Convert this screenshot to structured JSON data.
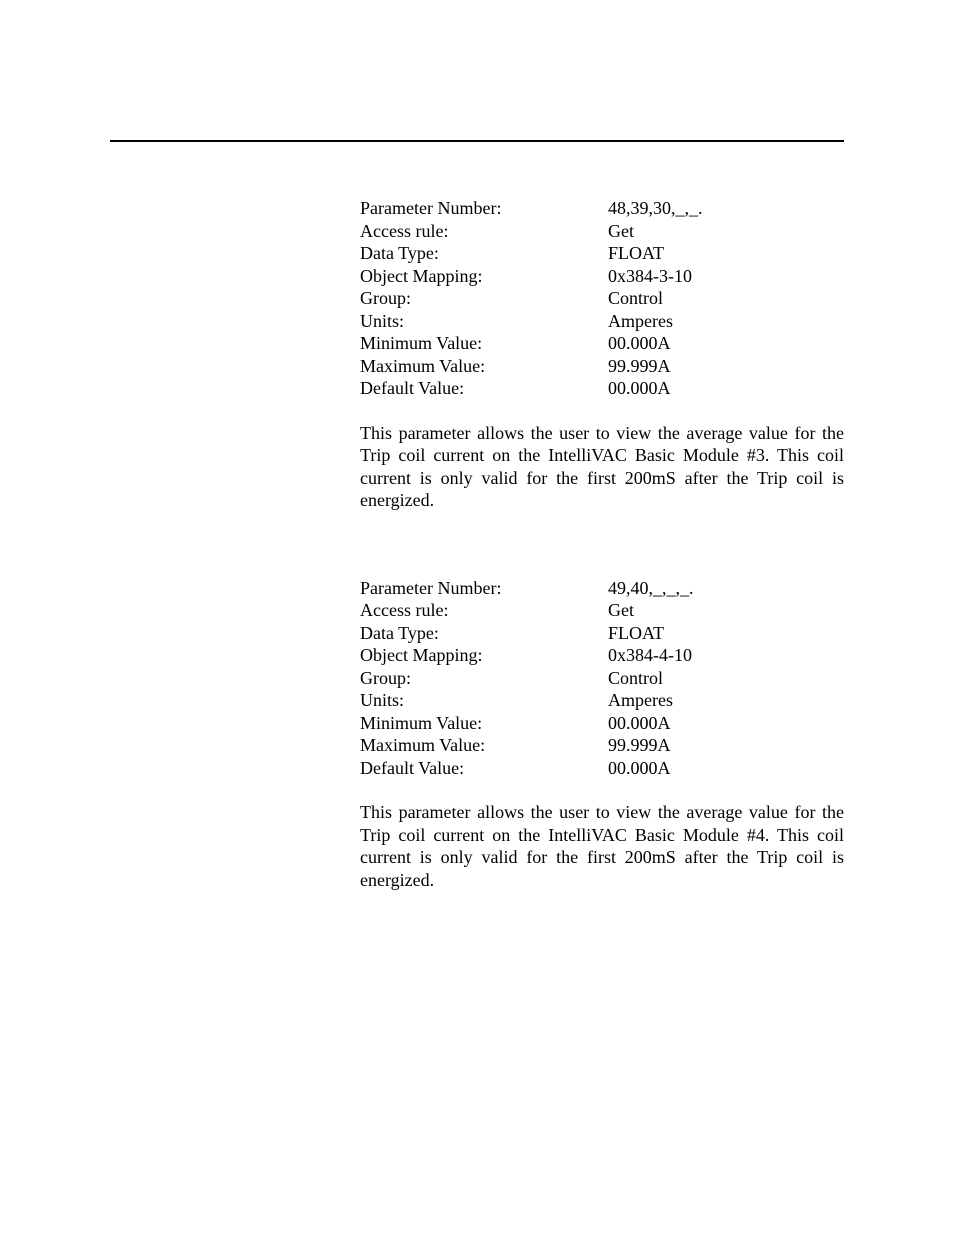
{
  "rule_color": "#000000",
  "background_color": "#ffffff",
  "text_color": "#000000",
  "font_family": "Times New Roman",
  "base_font_size_pt": 13,
  "sections": [
    {
      "rows": [
        {
          "label": "Parameter Number:",
          "value": "48,39,30,_,_."
        },
        {
          "label": "Access rule:",
          "value": "Get"
        },
        {
          "label": "Data Type:",
          "value": "FLOAT"
        },
        {
          "label": "Object Mapping:",
          "value": "0x384-3-10"
        },
        {
          "label": "Group:",
          "value": "Control"
        },
        {
          "label": "Units:",
          "value": "Amperes"
        },
        {
          "label": "Minimum Value:",
          "value": "00.000A"
        },
        {
          "label": "Maximum Value:",
          "value": "99.999A"
        },
        {
          "label": "Default Value:",
          "value": "00.000A"
        }
      ],
      "description": "This parameter allows the user to view the average value for the Trip coil current on the IntelliVAC Basic Module #3.  This coil current is only valid for the first 200mS after the Trip coil is energized."
    },
    {
      "rows": [
        {
          "label": "Parameter Number:",
          "value": "49,40,_,_,_."
        },
        {
          "label": "Access rule:",
          "value": "Get"
        },
        {
          "label": "Data Type:",
          "value": "FLOAT"
        },
        {
          "label": "Object Mapping:",
          "value": "0x384-4-10"
        },
        {
          "label": "Group:",
          "value": "Control"
        },
        {
          "label": "Units:",
          "value": "Amperes"
        },
        {
          "label": "Minimum Value:",
          "value": "00.000A"
        },
        {
          "label": "Maximum Value:",
          "value": "99.999A"
        },
        {
          "label": "Default Value:",
          "value": "00.000A"
        }
      ],
      "description": "This parameter allows the user to view the average value for the Trip coil current on the IntelliVAC Basic Module #4.  This coil current is only valid for the first 200mS after the Trip coil is energized."
    }
  ]
}
